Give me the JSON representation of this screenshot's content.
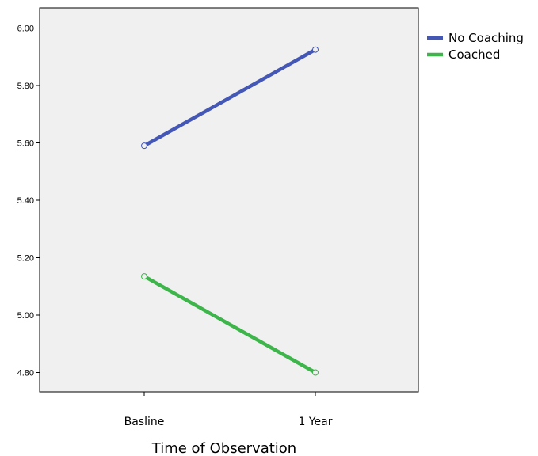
{
  "chart_data": {
    "type": "line",
    "categories": [
      "Basline",
      "1 Year"
    ],
    "series": [
      {
        "name": "No Coaching",
        "values": [
          5.59,
          5.925
        ],
        "color": "#4457b5"
      },
      {
        "name": "Coached",
        "values": [
          5.135,
          4.8
        ],
        "color": "#3db54a"
      }
    ],
    "xlabel": "Time of Observation",
    "ylabel": "",
    "ylim": [
      4.74,
      6.07
    ],
    "yticks": [
      "4.80",
      "5.00",
      "5.20",
      "5.40",
      "5.60",
      "5.80",
      "6.00"
    ],
    "grid": false,
    "legend": "right",
    "plot_background": "#f0f0f0"
  }
}
